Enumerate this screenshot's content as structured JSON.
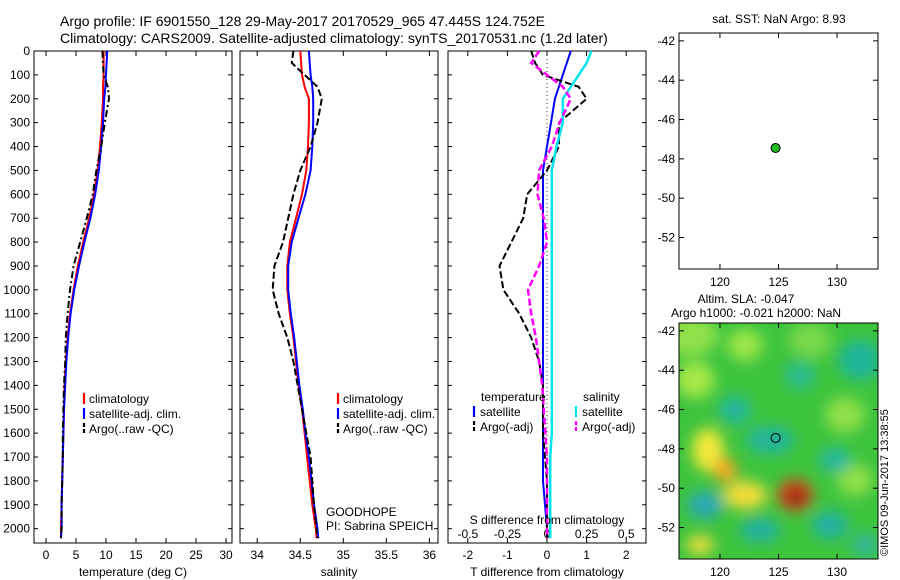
{
  "header": {
    "line1": "Argo profile: IF 6901550_128 29-May-2017 20170529_965 47.445S 124.752E",
    "line2": "Climatology: CARS2009. Satellite-adjusted climatology: synTS_20170531.nc (1.2d later)"
  },
  "colors": {
    "climatology": "#ff0000",
    "satellite": "#0000ff",
    "argo": "#000000",
    "salinity_satellite": "#00e5ee",
    "salinity_argo": "#ff00ff",
    "float_marker": "#22bb22"
  },
  "chart_data": [
    {
      "type": "line",
      "id": "temperature",
      "xlabel": "temperature (deg C)",
      "ylabel": "",
      "xlim": [
        -2,
        31
      ],
      "ylim": [
        2060,
        0
      ],
      "xticks": [
        0,
        5,
        10,
        15,
        20,
        25,
        30
      ],
      "yticks": [
        0,
        100,
        200,
        300,
        400,
        500,
        600,
        700,
        800,
        900,
        1000,
        1100,
        1200,
        1300,
        1400,
        1500,
        1600,
        1700,
        1800,
        1900,
        2000
      ],
      "legend": [
        "climatology",
        "satellite-adj. clim.",
        "Argo(..raw -QC)"
      ],
      "depths": [
        0,
        50,
        100,
        150,
        200,
        300,
        400,
        500,
        600,
        700,
        800,
        900,
        1000,
        1100,
        1200,
        1300,
        1400,
        1500,
        1600,
        1700,
        1800,
        1900,
        2000,
        2040
      ],
      "series": [
        {
          "name": "climatology",
          "values": [
            9.6,
            9.6,
            9.6,
            9.5,
            9.5,
            9.3,
            9.0,
            8.6,
            8.0,
            7.2,
            6.2,
            5.3,
            4.6,
            4.0,
            3.6,
            3.3,
            3.1,
            3.0,
            2.9,
            2.8,
            2.7,
            2.6,
            2.5,
            2.5
          ]
        },
        {
          "name": "satellite-adj. clim.",
          "values": [
            10.2,
            10.1,
            10.0,
            9.9,
            9.7,
            9.5,
            9.2,
            8.8,
            8.2,
            7.4,
            6.4,
            5.5,
            4.7,
            4.1,
            3.7,
            3.4,
            3.2,
            3.0,
            2.9,
            2.8,
            2.7,
            2.6,
            2.6,
            2.5
          ]
        },
        {
          "name": "Argo(..raw -QC)",
          "values": [
            9.4,
            9.5,
            9.6,
            10.3,
            10.5,
            9.8,
            9.2,
            8.4,
            7.8,
            6.8,
            5.7,
            4.6,
            4.0,
            3.6,
            3.3,
            3.2,
            3.0,
            2.9,
            2.8,
            2.8,
            2.7,
            2.6,
            2.6,
            2.5
          ]
        }
      ]
    },
    {
      "type": "line",
      "id": "salinity",
      "xlabel": "salinity",
      "ylabel": "",
      "xlim": [
        33.8,
        36.1
      ],
      "ylim": [
        2060,
        0
      ],
      "xticks": [
        34,
        34.5,
        35,
        35.5,
        36
      ],
      "legend": [
        "climatology",
        "satellite-adj. clim.",
        "Argo(..raw -QC)"
      ],
      "annotation": [
        "GOODHOPE",
        "PI: Sabrina SPEICH"
      ],
      "depths": [
        0,
        50,
        100,
        150,
        200,
        300,
        400,
        500,
        600,
        700,
        800,
        900,
        1000,
        1100,
        1200,
        1300,
        1400,
        1500,
        1600,
        1700,
        1800,
        1900,
        2000,
        2040
      ],
      "series": [
        {
          "name": "climatology",
          "values": [
            34.5,
            34.51,
            34.52,
            34.55,
            34.6,
            34.6,
            34.59,
            34.57,
            34.52,
            34.45,
            34.38,
            34.35,
            34.35,
            34.38,
            34.42,
            34.45,
            34.48,
            34.52,
            34.55,
            34.58,
            34.61,
            34.64,
            34.68,
            34.69
          ]
        },
        {
          "name": "satellite-adj. clim.",
          "values": [
            34.6,
            34.61,
            34.62,
            34.64,
            34.65,
            34.65,
            34.64,
            34.62,
            34.56,
            34.48,
            34.4,
            34.36,
            34.36,
            34.39,
            34.43,
            34.46,
            34.49,
            34.53,
            34.56,
            34.6,
            34.63,
            34.66,
            34.7,
            34.71
          ]
        },
        {
          "name": "Argo(..raw -QC)",
          "values": [
            34.42,
            34.4,
            34.55,
            34.7,
            34.75,
            34.7,
            34.62,
            34.5,
            34.42,
            34.36,
            34.3,
            34.2,
            34.18,
            34.25,
            34.35,
            34.42,
            34.47,
            34.52,
            34.57,
            34.62,
            34.64,
            34.66,
            34.69,
            34.7
          ]
        }
      ]
    },
    {
      "type": "line",
      "id": "difference",
      "xlabel": "T difference from climatology",
      "x2label": "S difference from climatology",
      "xlim": [
        -2.5,
        2.5
      ],
      "ylim": [
        2060,
        0
      ],
      "xticks": [
        -2,
        -1,
        0,
        1,
        2
      ],
      "x2ticks": [
        -0.5,
        -0.25,
        0,
        0.25,
        0.5
      ],
      "legend_titles": [
        "temperature",
        "salinity"
      ],
      "legend": [
        "satellite",
        "Argo(-adj)",
        "satellite",
        "Argo(-adj)"
      ],
      "depths": [
        0,
        50,
        100,
        150,
        200,
        300,
        400,
        500,
        600,
        700,
        800,
        900,
        1000,
        1100,
        1200,
        1300,
        1400,
        1500,
        1600,
        1700,
        1800,
        1900,
        2000,
        2040
      ],
      "series": [
        {
          "name": "temperature satellite",
          "values": [
            0.6,
            0.5,
            0.4,
            0.3,
            0.2,
            0.1,
            0.0,
            -0.1,
            -0.1,
            -0.1,
            -0.1,
            -0.1,
            -0.1,
            -0.1,
            -0.1,
            -0.1,
            -0.1,
            -0.1,
            -0.1,
            -0.1,
            -0.1,
            -0.05,
            0.0,
            0.0
          ]
        },
        {
          "name": "temperature Argo(-adj)",
          "values": [
            -0.4,
            -0.3,
            -0.1,
            0.8,
            1.0,
            0.3,
            0.3,
            0.0,
            -0.5,
            -0.6,
            -0.9,
            -1.2,
            -1.1,
            -0.7,
            -0.4,
            -0.2,
            -0.1,
            -0.1,
            -0.1,
            -0.05,
            0.0,
            0.0,
            0.0,
            0.0
          ]
        },
        {
          "name": "salinity satellite",
          "values": [
            0.28,
            0.25,
            0.2,
            0.15,
            0.1,
            0.1,
            0.06,
            0.03,
            0.03,
            0.03,
            0.03,
            0.03,
            0.03,
            0.03,
            0.03,
            0.03,
            0.03,
            0.03,
            0.03,
            0.02,
            0.02,
            0.02,
            0.02,
            0.02
          ]
        },
        {
          "name": "salinity Argo(-adj)",
          "values": [
            -0.05,
            -0.1,
            0.0,
            0.1,
            0.15,
            0.08,
            0.03,
            -0.05,
            -0.06,
            -0.02,
            0.0,
            -0.05,
            -0.12,
            -0.1,
            -0.07,
            -0.05,
            -0.03,
            -0.02,
            -0.01,
            0.0,
            0.0,
            0.0,
            0.0,
            0.0
          ]
        }
      ]
    },
    {
      "type": "scatter",
      "id": "location",
      "title": "sat. SST: NaN Argo: 8.93",
      "xlim": [
        116.5,
        133.5
      ],
      "ylim": [
        -53.6,
        -41.6
      ],
      "xticks": [
        120,
        125,
        130
      ],
      "yticks": [
        -42,
        -44,
        -46,
        -48,
        -50,
        -52
      ],
      "points": [
        {
          "x": 124.752,
          "y": -47.445
        }
      ]
    },
    {
      "type": "heatmap",
      "id": "sla",
      "title": [
        "Altim. SLA: -0.047",
        "Argo h1000: -0.021 h2000: NaN"
      ],
      "xlim": [
        116.5,
        133.5
      ],
      "ylim": [
        -53.6,
        -41.6
      ],
      "xticks": [
        120,
        125,
        130
      ],
      "yticks": [
        -42,
        -44,
        -46,
        -48,
        -50,
        -52
      ],
      "points": [
        {
          "x": 124.752,
          "y": -47.445
        }
      ],
      "side_label": "©IMOS 09-Jun-2017 13:38:55"
    }
  ]
}
